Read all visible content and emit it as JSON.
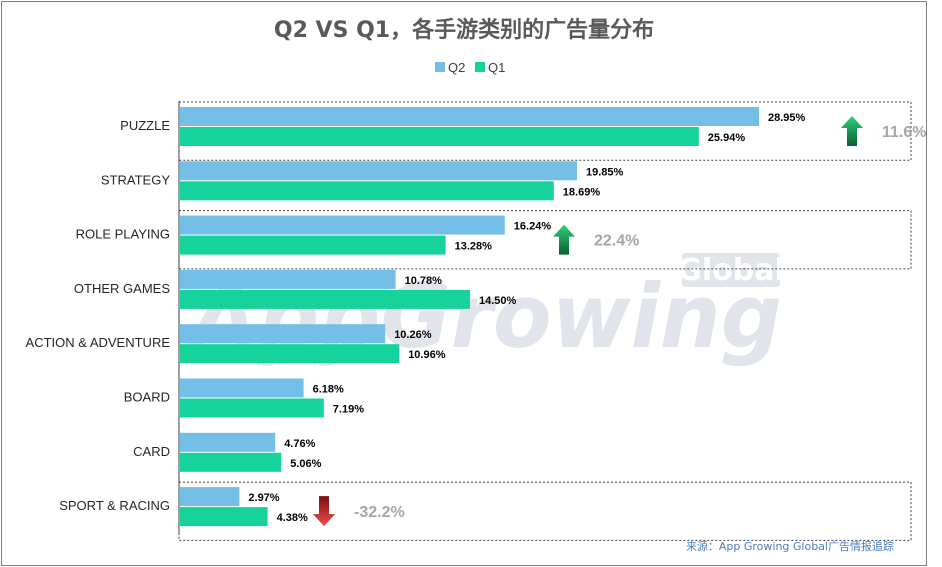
{
  "chart_data": {
    "type": "bar",
    "orientation": "horizontal",
    "title": "Q2 VS Q1，各手游类别的广告量分布",
    "legend_position": "top-center",
    "categories": [
      "PUZZLE",
      "STRATEGY",
      "ROLE PLAYING",
      "OTHER GAMES",
      "ACTION & ADVENTURE",
      "BOARD",
      "CARD",
      "SPORT & RACING"
    ],
    "series": [
      {
        "name": "Q2",
        "color": "#74bfe8",
        "values": [
          28.95,
          19.85,
          16.24,
          10.78,
          10.26,
          6.18,
          4.76,
          2.97
        ],
        "labels": [
          "28.95%",
          "19.85%",
          "16.24%",
          "10.78%",
          "10.26%",
          "6.18%",
          "4.76%",
          "2.97%"
        ]
      },
      {
        "name": "Q1",
        "color": "#16d29b",
        "values": [
          25.94,
          18.69,
          13.28,
          14.5,
          10.96,
          7.19,
          5.06,
          4.38
        ],
        "labels": [
          "25.94%",
          "18.69%",
          "13.28%",
          "14.50%",
          "10.96%",
          "7.19%",
          "5.06%",
          "4.38%"
        ]
      }
    ],
    "xlim": [
      0,
      38
    ],
    "grid": false,
    "annotations": [
      {
        "category_index": 0,
        "direction": "up",
        "text": "11.6%",
        "x_value": 33.6
      },
      {
        "category_index": 2,
        "direction": "up",
        "text": "22.4%",
        "x_value": 19.2
      },
      {
        "category_index": 7,
        "direction": "down",
        "text": "-32.2%",
        "x_value": 7.2
      }
    ],
    "highlighted_categories": [
      0,
      2,
      7
    ]
  },
  "watermark": {
    "main": "AppGrowing",
    "badge": "Global"
  },
  "source": "来源：App Growing Global广告情报追踪",
  "colors": {
    "arrow_up": "#1aa35a",
    "arrow_down": "#e03a3a",
    "axis": "#404040",
    "highlight_border": "#404040"
  }
}
